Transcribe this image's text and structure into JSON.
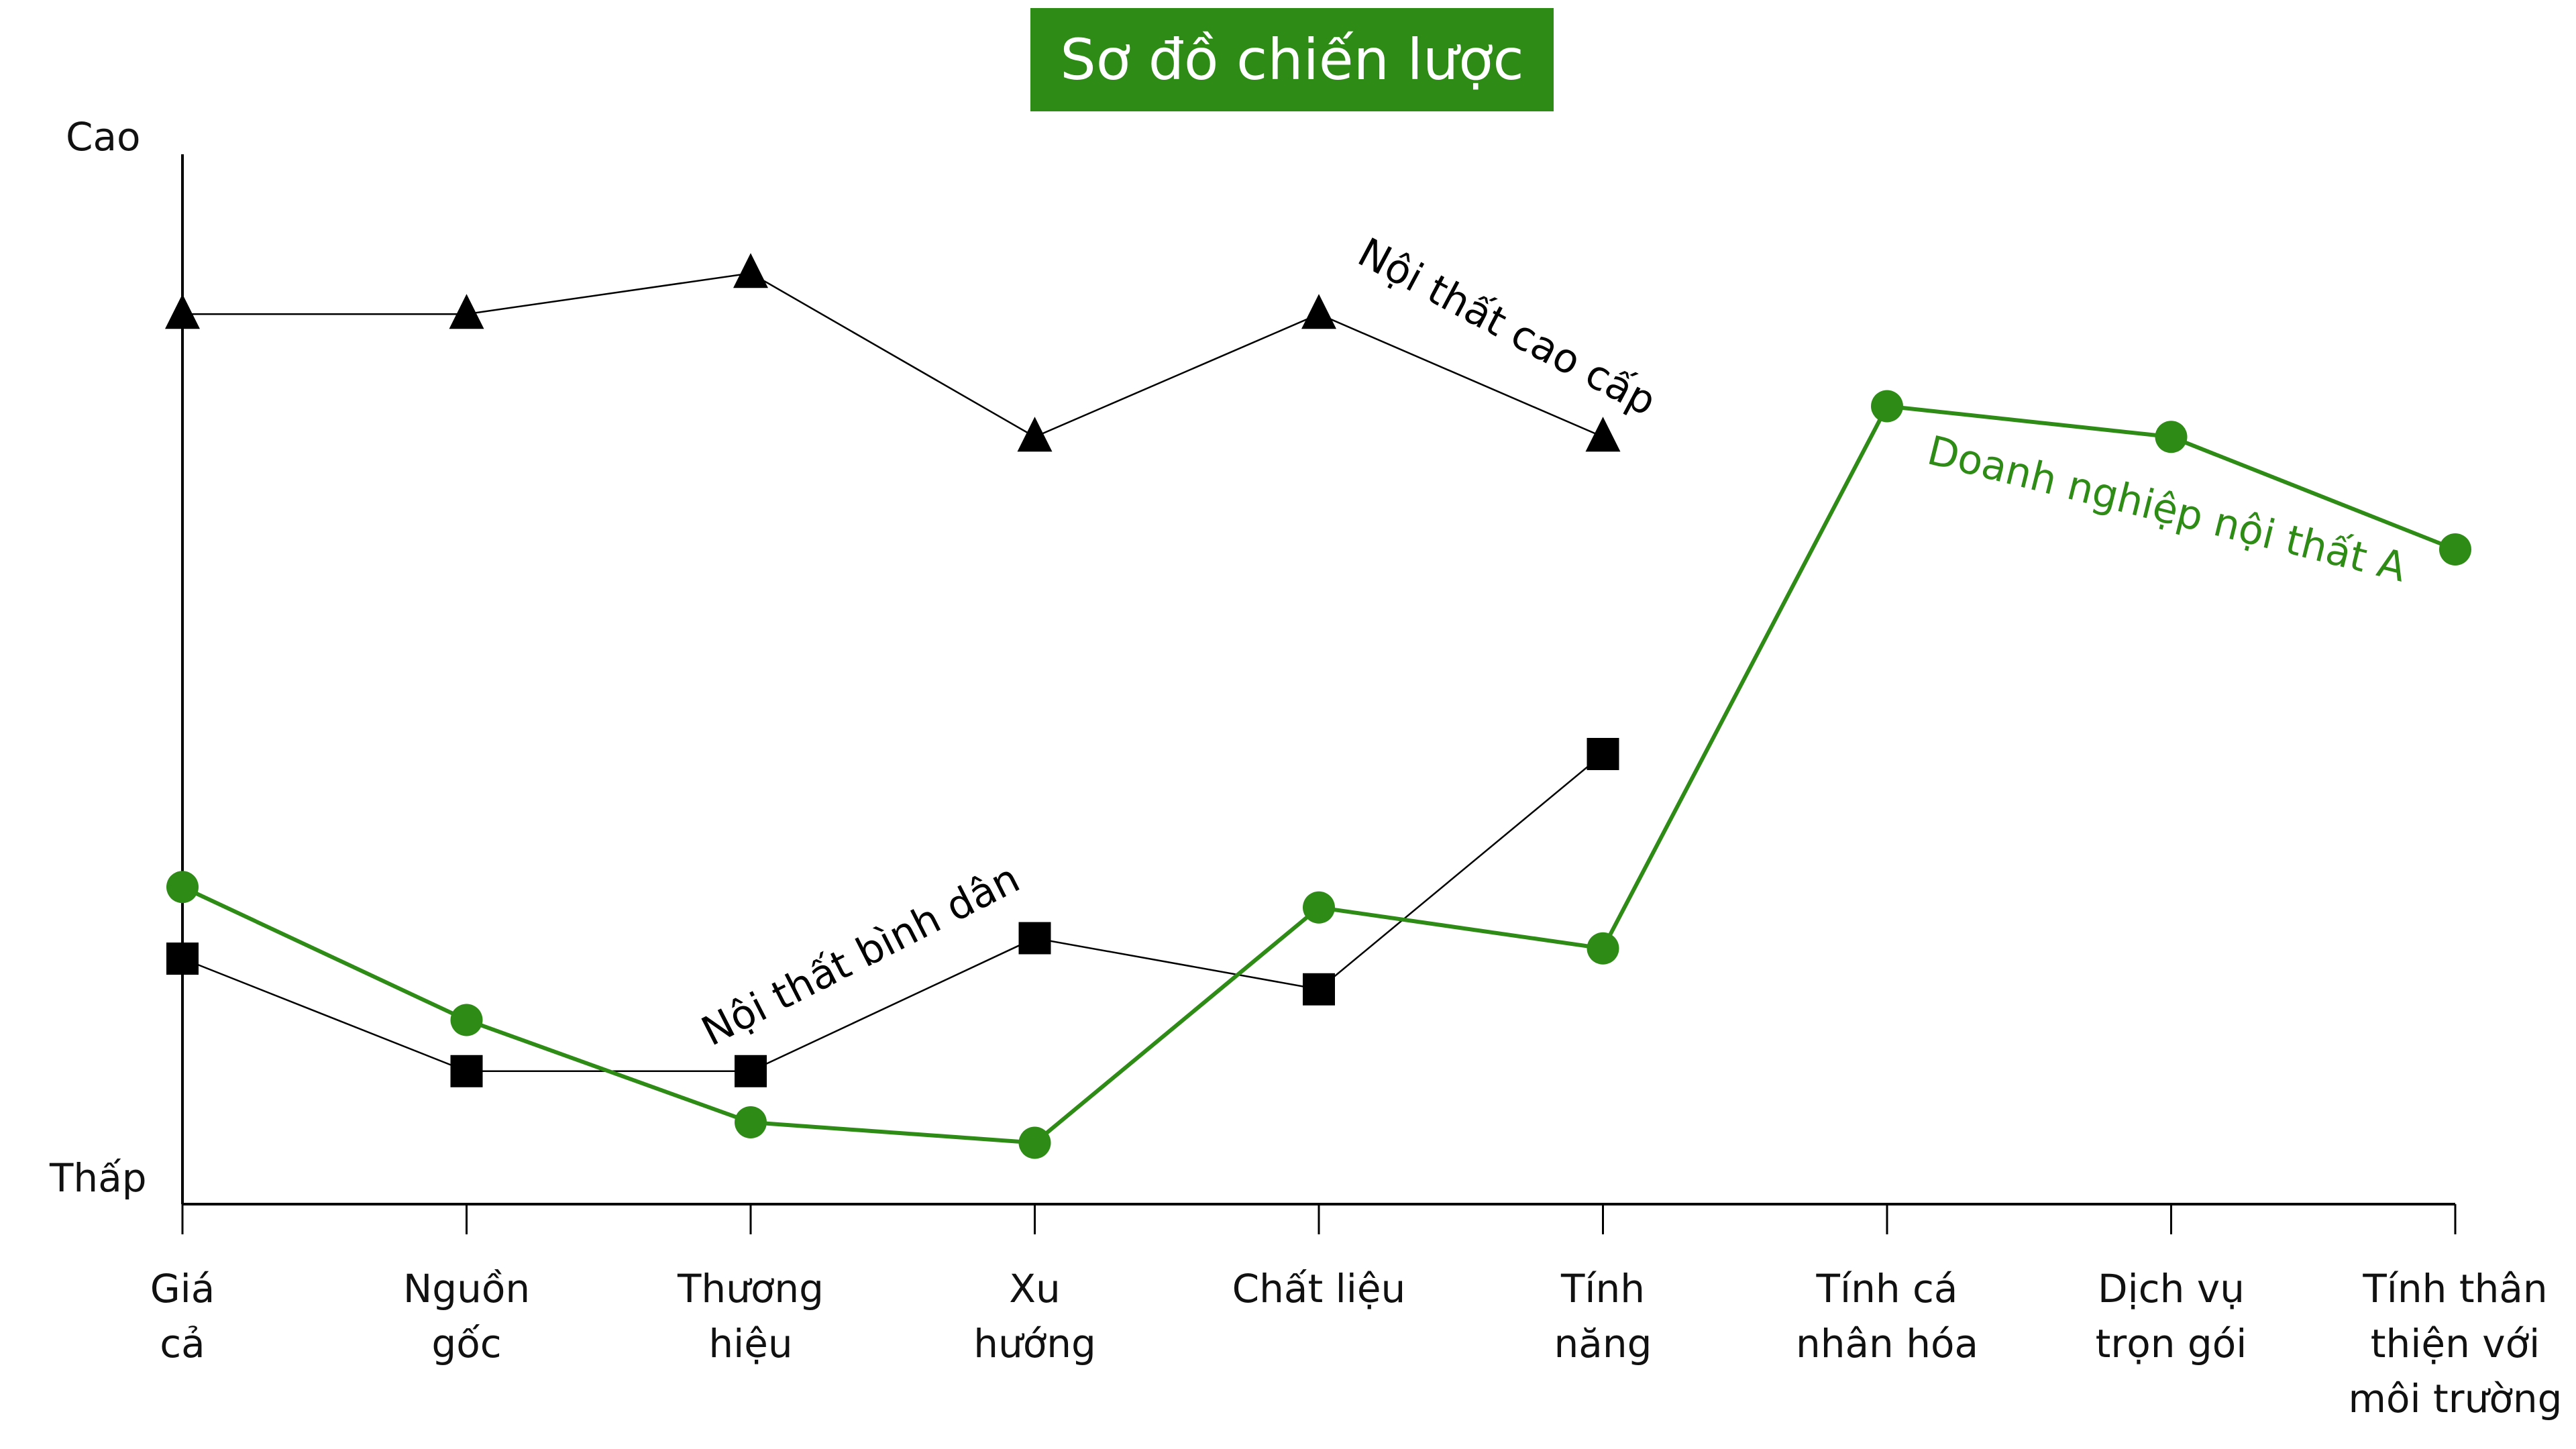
{
  "chart_data": {
    "type": "line",
    "title": "Sơ đồ chiến lược",
    "y_top_label": "Cao",
    "y_bottom_label": "Thấp",
    "categories": [
      "Giá\ncả",
      "Nguồn\ngốc",
      "Thương\nhiệu",
      "Xu\nhướng",
      "Chất liệu",
      "Tính\nnăng",
      "Tính cá\nnhân hóa",
      "Dịch vụ\ntrọn gói",
      "Tính thân\nthiện với\nmôi trường"
    ],
    "ylim": [
      0,
      10
    ],
    "grid": false,
    "series": [
      {
        "name": "Nội thất cao cấp",
        "marker": "triangle",
        "color": "#000000",
        "values": [
          8.7,
          8.7,
          9.1,
          7.5,
          8.7,
          7.5,
          null,
          null,
          null
        ]
      },
      {
        "name": "Nội thất bình dân",
        "marker": "square",
        "color": "#000000",
        "values": [
          2.4,
          1.3,
          1.3,
          2.6,
          2.1,
          4.4,
          null,
          null,
          null
        ]
      },
      {
        "name": "Doanh nghiệp nội thất A",
        "marker": "circle",
        "color": "#2e8b16",
        "values": [
          3.1,
          1.8,
          0.8,
          0.6,
          2.9,
          2.5,
          7.8,
          7.5,
          6.4
        ]
      }
    ]
  }
}
